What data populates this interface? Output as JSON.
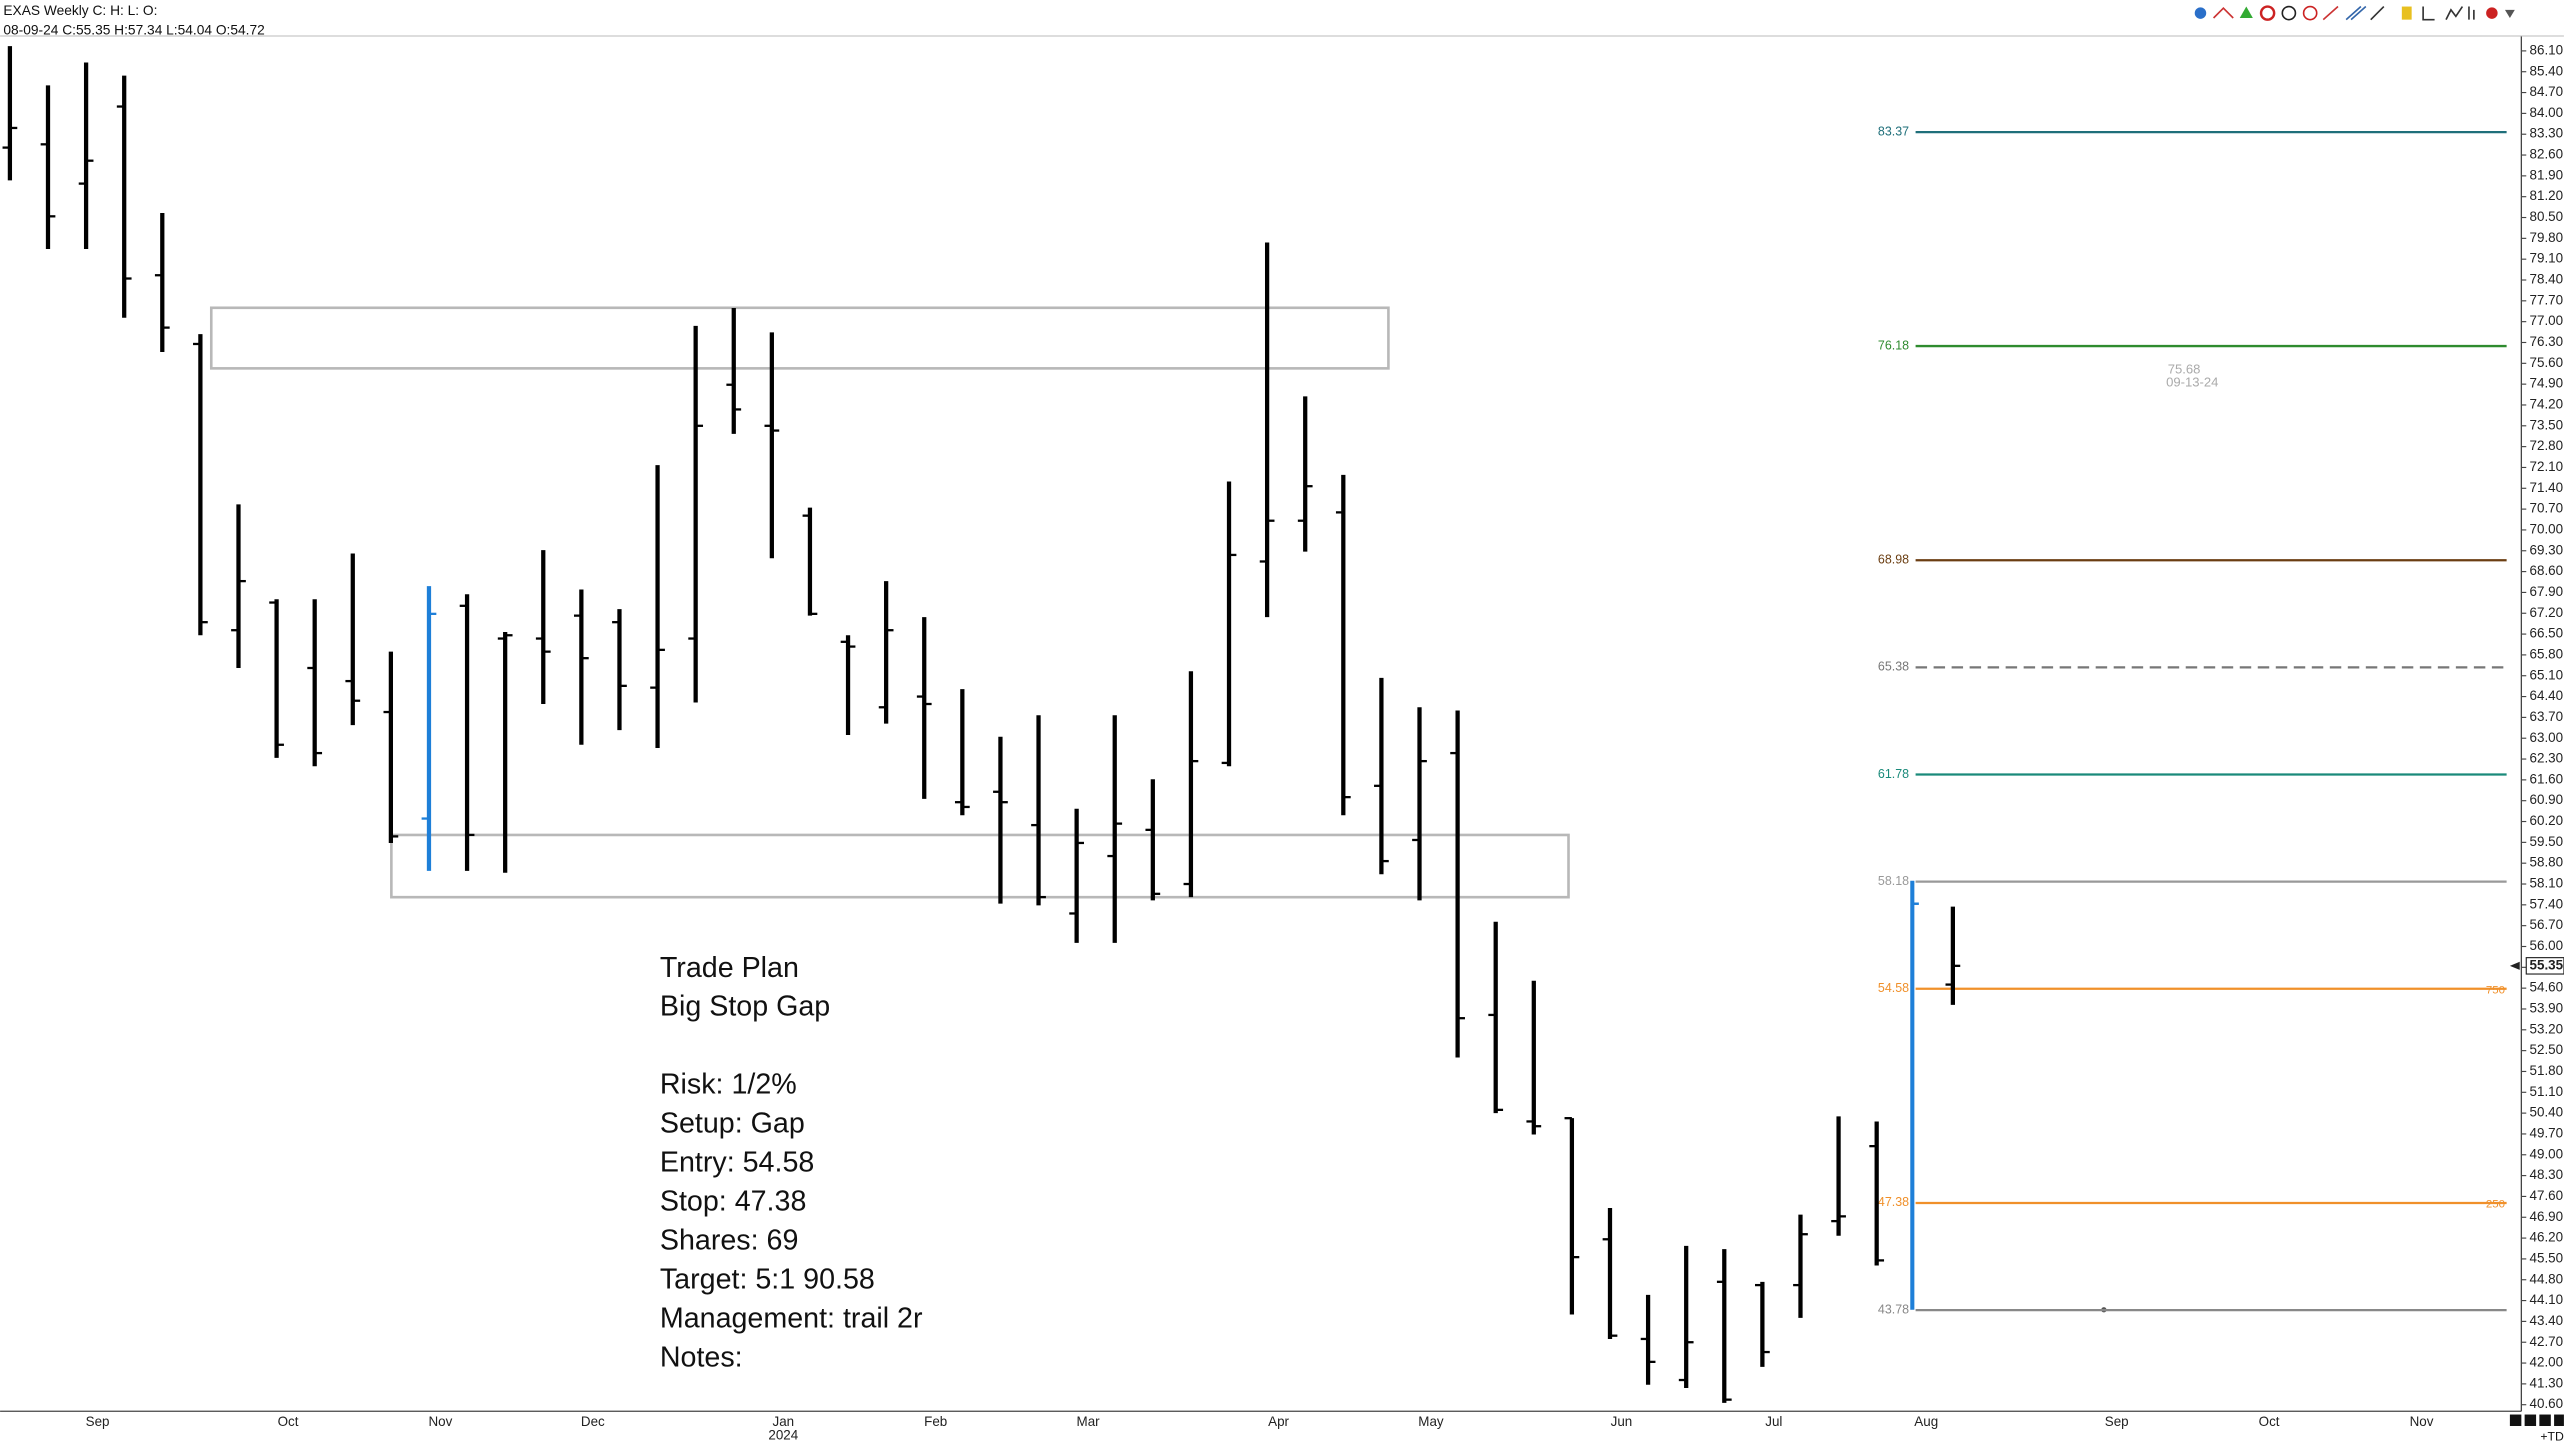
{
  "chart_data": {
    "type": "ohlc",
    "title": "EXAS Weekly C: H: L: O:",
    "header": "08-09-24 C:55.35 H:57.34 L:54.04 O:54.72",
    "categories": [
      null,
      null,
      "Sep",
      null,
      null,
      null,
      null,
      "Oct",
      null,
      null,
      null,
      "Nov",
      null,
      null,
      null,
      "Dec",
      null,
      null,
      null,
      null,
      "Jan",
      null,
      null,
      null,
      "Feb",
      null,
      null,
      null,
      "Mar",
      null,
      null,
      null,
      null,
      "Apr",
      null,
      null,
      null,
      "May",
      null,
      null,
      null,
      null,
      "Jun",
      null,
      null,
      null,
      "Jul",
      null,
      null,
      null,
      "Aug",
      null,
      null,
      null,
      null,
      "Sep",
      null,
      null,
      null,
      "Oct",
      null,
      null,
      null,
      "Nov",
      null,
      null
    ],
    "year_label": "2024",
    "series": [
      {
        "color": "#000000",
        "open": [
          82.85,
          82.96,
          81.64,
          84.23,
          78.56,
          76.25,
          66.63,
          67.56,
          65.36,
          64.92,
          63.88,
          null,
          67.45,
          66.35,
          66.35,
          67.12,
          66.9,
          64.7,
          66.35,
          74.88,
          73.5,
          70.48,
          66.24,
          64.04,
          64.4,
          60.85,
          61.2,
          60.08,
          57.11,
          59.04,
          59.92,
          58.1,
          62.17,
          68.94,
          70.31,
          70.59,
          61.4,
          59.58,
          62.5,
          53.7,
          50.12,
          50.23,
          46.16,
          42.81,
          41.43,
          44.73,
          44.62,
          44.62,
          46.77,
          49.29,
          null,
          54.72,
          null,
          null,
          null,
          null,
          null,
          null,
          null,
          null,
          null,
          null,
          null,
          null,
          null,
          null
        ],
        "high": [
          86.26,
          84.94,
          85.71,
          85.27,
          80.65,
          76.58,
          70.86,
          67.67,
          67.67,
          69.21,
          65.91,
          null,
          67.84,
          66.57,
          69.32,
          68.0,
          67.34,
          72.18,
          76.86,
          77.46,
          76.64,
          70.75,
          66.46,
          68.28,
          67.07,
          64.65,
          63.05,
          63.77,
          60.63,
          63.77,
          61.62,
          65.25,
          71.63,
          79.66,
          74.49,
          71.85,
          65.03,
          64.04,
          63.93,
          56.83,
          54.85,
          50.23,
          47.21,
          44.29,
          45.94,
          45.83,
          44.73,
          46.99,
          50.29,
          50.12,
          null,
          57.34,
          null,
          null,
          null,
          null,
          null,
          null,
          null,
          null,
          null,
          null,
          null,
          null,
          null,
          null
        ],
        "low": [
          81.75,
          79.44,
          79.44,
          77.13,
          75.98,
          66.46,
          65.36,
          62.34,
          62.06,
          63.44,
          59.48,
          null,
          58.54,
          58.48,
          64.15,
          62.78,
          63.27,
          62.67,
          64.2,
          73.23,
          69.05,
          67.12,
          63.11,
          63.49,
          60.96,
          60.41,
          57.44,
          57.38,
          56.12,
          56.12,
          57.55,
          57.66,
          62.06,
          67.07,
          69.27,
          60.41,
          58.43,
          57.55,
          52.27,
          50.4,
          49.68,
          43.63,
          42.81,
          41.27,
          41.16,
          40.66,
          41.87,
          43.52,
          46.28,
          45.28,
          null,
          54.04,
          null,
          null,
          null,
          null,
          null,
          null,
          null,
          null,
          null,
          null,
          null,
          null,
          null,
          null
        ],
        "close": [
          83.51,
          80.54,
          82.41,
          78.45,
          76.8,
          66.9,
          68.28,
          62.78,
          62.5,
          64.26,
          59.7,
          null,
          59.75,
          66.46,
          65.91,
          65.69,
          64.76,
          65.97,
          73.5,
          74.05,
          73.34,
          67.18,
          66.08,
          66.63,
          64.15,
          60.69,
          60.85,
          57.66,
          59.48,
          60.13,
          57.77,
          62.23,
          69.16,
          70.31,
          71.47,
          61.02,
          58.87,
          62.23,
          53.59,
          50.51,
          49.96,
          45.56,
          42.92,
          42.04,
          42.7,
          40.77,
          42.37,
          46.33,
          46.93,
          45.45,
          null,
          55.35,
          null,
          null,
          null,
          null,
          null,
          null,
          null,
          null,
          null,
          null,
          null,
          null,
          null,
          null
        ]
      },
      {
        "color": "#1e7fd8",
        "open": [
          null,
          null,
          null,
          null,
          null,
          null,
          null,
          null,
          null,
          null,
          null,
          60.3,
          null,
          null,
          null,
          null,
          null,
          null,
          null,
          null,
          null,
          null,
          null,
          null,
          null,
          null,
          null,
          null,
          null,
          null,
          null,
          null,
          null,
          null,
          null,
          null,
          null,
          null,
          null,
          null,
          null,
          null,
          null,
          null,
          null,
          null,
          null,
          null,
          null,
          null,
          null,
          null,
          null,
          null,
          null,
          null,
          null,
          null,
          null,
          null,
          null,
          null,
          null,
          null,
          null,
          null
        ],
        "high": [
          null,
          null,
          null,
          null,
          null,
          null,
          null,
          null,
          null,
          null,
          null,
          68.11,
          null,
          null,
          null,
          null,
          null,
          null,
          null,
          null,
          null,
          null,
          null,
          null,
          null,
          null,
          null,
          null,
          null,
          null,
          null,
          null,
          null,
          null,
          null,
          null,
          null,
          null,
          null,
          null,
          null,
          null,
          null,
          null,
          null,
          null,
          null,
          null,
          null,
          null,
          null,
          null,
          null,
          null,
          null,
          null,
          null,
          null,
          null,
          null,
          null,
          null,
          null,
          null,
          null,
          null
        ],
        "low": [
          null,
          null,
          null,
          null,
          null,
          null,
          null,
          null,
          null,
          null,
          null,
          58.54,
          null,
          null,
          null,
          null,
          null,
          null,
          null,
          null,
          null,
          null,
          null,
          null,
          null,
          null,
          null,
          null,
          null,
          null,
          null,
          null,
          null,
          null,
          null,
          null,
          null,
          null,
          null,
          null,
          null,
          null,
          null,
          null,
          null,
          null,
          null,
          null,
          null,
          null,
          null,
          null,
          null,
          null,
          null,
          null,
          null,
          null,
          null,
          null,
          null,
          null,
          null,
          null,
          null,
          null
        ],
        "close": [
          null,
          null,
          null,
          null,
          null,
          null,
          null,
          null,
          null,
          null,
          null,
          67.18,
          null,
          null,
          null,
          null,
          null,
          null,
          null,
          null,
          null,
          null,
          null,
          null,
          null,
          null,
          null,
          null,
          null,
          null,
          null,
          null,
          null,
          null,
          null,
          null,
          null,
          null,
          null,
          null,
          null,
          null,
          null,
          null,
          null,
          null,
          null,
          null,
          null,
          null,
          null,
          null,
          null,
          null,
          null,
          null,
          null,
          null,
          null,
          null,
          null,
          null,
          null,
          null,
          null,
          null
        ]
      }
    ],
    "ylim": [
      40.27,
      86.38
    ],
    "yticks": [
      {
        "value": 86.1,
        "label": "86.10"
      },
      {
        "value": 85.4,
        "label": "85.40"
      },
      {
        "value": 84.7,
        "label": "84.70"
      },
      {
        "value": 84,
        "label": "84.00"
      },
      {
        "value": 83.3,
        "label": "83.30"
      },
      {
        "value": 82.6,
        "label": "82.60"
      },
      {
        "value": 81.9,
        "label": "81.90"
      },
      {
        "value": 81.2,
        "label": "81.20"
      },
      {
        "value": 80.5,
        "label": "80.50"
      },
      {
        "value": 79.8,
        "label": "79.80"
      },
      {
        "value": 79.1,
        "label": "79.10"
      },
      {
        "value": 78.4,
        "label": "78.40"
      },
      {
        "value": 77.7,
        "label": "77.70"
      },
      {
        "value": 77,
        "label": "77.00"
      },
      {
        "value": 76.3,
        "label": "76.30"
      },
      {
        "value": 75.6,
        "label": "75.60"
      },
      {
        "value": 74.9,
        "label": "74.90"
      },
      {
        "value": 74.2,
        "label": "74.20"
      },
      {
        "value": 73.5,
        "label": "73.50"
      },
      {
        "value": 72.8,
        "label": "72.80"
      },
      {
        "value": 72.1,
        "label": "72.10"
      },
      {
        "value": 71.4,
        "label": "71.40"
      },
      {
        "value": 70.7,
        "label": "70.70"
      },
      {
        "value": 70,
        "label": "70.00"
      },
      {
        "value": 69.3,
        "label": "69.30"
      },
      {
        "value": 68.6,
        "label": "68.60"
      },
      {
        "value": 67.9,
        "label": "67.90"
      },
      {
        "value": 67.2,
        "label": "67.20"
      },
      {
        "value": 66.5,
        "label": "66.50"
      },
      {
        "value": 65.8,
        "label": "65.80"
      },
      {
        "value": 65.1,
        "label": "65.10"
      },
      {
        "value": 64.4,
        "label": "64.40"
      },
      {
        "value": 63.7,
        "label": "63.70"
      },
      {
        "value": 63,
        "label": "63.00"
      },
      {
        "value": 62.3,
        "label": "62.30"
      },
      {
        "value": 61.6,
        "label": "61.60"
      },
      {
        "value": 60.9,
        "label": "60.90"
      },
      {
        "value": 60.2,
        "label": "60.20"
      },
      {
        "value": 59.5,
        "label": "59.50"
      },
      {
        "value": 58.8,
        "label": "58.80"
      },
      {
        "value": 58.1,
        "label": "58.10"
      },
      {
        "value": 57.4,
        "label": "57.40"
      },
      {
        "value": 56.7,
        "label": "56.70"
      },
      {
        "value": 56,
        "label": "56.00"
      },
      {
        "value": 55.3,
        "label": "55.30"
      },
      {
        "value": 54.6,
        "label": "54.60"
      },
      {
        "value": 53.9,
        "label": "53.90"
      },
      {
        "value": 53.2,
        "label": "53.20"
      },
      {
        "value": 52.5,
        "label": "52.50"
      },
      {
        "value": 51.8,
        "label": "51.80"
      },
      {
        "value": 51.1,
        "label": "51.10"
      },
      {
        "value": 50.4,
        "label": "50.40"
      },
      {
        "value": 49.7,
        "label": "49.70"
      },
      {
        "value": 49,
        "label": "49.00"
      },
      {
        "value": 48.3,
        "label": "48.30"
      },
      {
        "value": 47.6,
        "label": "47.60"
      },
      {
        "value": 46.9,
        "label": "46.90"
      },
      {
        "value": 46.2,
        "label": "46.20"
      },
      {
        "value": 45.5,
        "label": "45.50"
      },
      {
        "value": 44.8,
        "label": "44.80"
      },
      {
        "value": 44.1,
        "label": "44.10"
      },
      {
        "value": 43.4,
        "label": "43.40"
      },
      {
        "value": 42.7,
        "label": "42.70"
      },
      {
        "value": 42,
        "label": "42.00"
      },
      {
        "value": 41.3,
        "label": "41.30"
      },
      {
        "value": 40.6,
        "label": "40.60"
      }
    ],
    "levels": [
      {
        "value": 83.37,
        "color": "#1f6f7a"
      },
      {
        "value": 76.18,
        "color": "#2e8b2e"
      },
      {
        "value": 68.98,
        "color": "#6b3e12"
      },
      {
        "value": 65.38,
        "color": "#777777",
        "dashed": true
      },
      {
        "value": 61.78,
        "color": "#1a8a7a"
      },
      {
        "value": 58.18,
        "color": "#999999"
      },
      {
        "value": 54.58,
        "color": "#f0902a",
        "tag": "750"
      },
      {
        "value": 47.38,
        "color": "#f0902a",
        "tag": "250"
      },
      {
        "value": 43.78,
        "color": "#888888"
      }
    ],
    "note": [
      "75.68",
      "09-13-24"
    ],
    "corner_label": "+TD",
    "trade_plan": {
      "heading": [
        "Trade Plan",
        "Big Stop Gap"
      ],
      "lines": [
        "Risk: 1/2%",
        "Setup: Gap",
        "Entry: 54.58",
        "Stop: 47.38",
        "Shares: 69",
        "Target: 5:1  90.58",
        "Management: trail 2r",
        "Notes:"
      ]
    }
  }
}
